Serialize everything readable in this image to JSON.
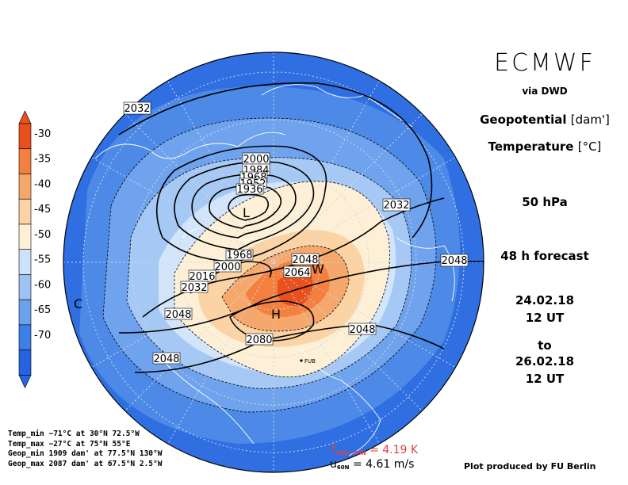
{
  "header": {
    "brand": "ECMWF",
    "via": "via DWD",
    "var1_name": "Geopotential",
    "var1_unit": "[dam']",
    "var2_name": "Temperature",
    "var2_unit": "[°C]",
    "level": "50 hPa",
    "forecast": "48 h forecast",
    "date_start": "24.02.18",
    "time_start": "12 UT",
    "to": "to",
    "date_end": "26.02.18",
    "time_end": "12 UT"
  },
  "colorbar": {
    "labels": [
      "-30",
      "-35",
      "-40",
      "-45",
      "-50",
      "-55",
      "-60",
      "-65",
      "-70"
    ],
    "colors": [
      "#e8501c",
      "#f3803e",
      "#f6a86c",
      "#fbd3a4",
      "#fdf0d6",
      "#cfe2fb",
      "#9cc3f3",
      "#6aa2ec",
      "#3c7fe6",
      "#2563e0"
    ]
  },
  "contour_labels": [
    "2032",
    "2000",
    "1984",
    "1968",
    "1952",
    "1936",
    "2032",
    "2048",
    "1968",
    "2000",
    "2016",
    "2032",
    "2048",
    "2064",
    "2048",
    "2080",
    "2048",
    "2048"
  ],
  "markers": {
    "low": "L",
    "high": "H",
    "warm": "W",
    "cold": "C",
    "station": "FUB"
  },
  "stats": {
    "temp_min": "Temp_min −71°C at 30°N 72.5°W",
    "temp_max": "Temp_max −27°C at 75°N 55°E",
    "geop_min": "Geop_min 1909 dam' at 77.5°N 130°W",
    "geop_max": "Geop_max 2087 dam' at 67.5°N 2.5°W"
  },
  "tdiff": {
    "prefix": "T",
    "sub": "90N−60N",
    "value": "= 4.19 K"
  },
  "uwind": {
    "prefix": "u",
    "sub": "60N",
    "value": "= 4.61 m/s"
  },
  "credit": "Plot produced by FU Berlin"
}
